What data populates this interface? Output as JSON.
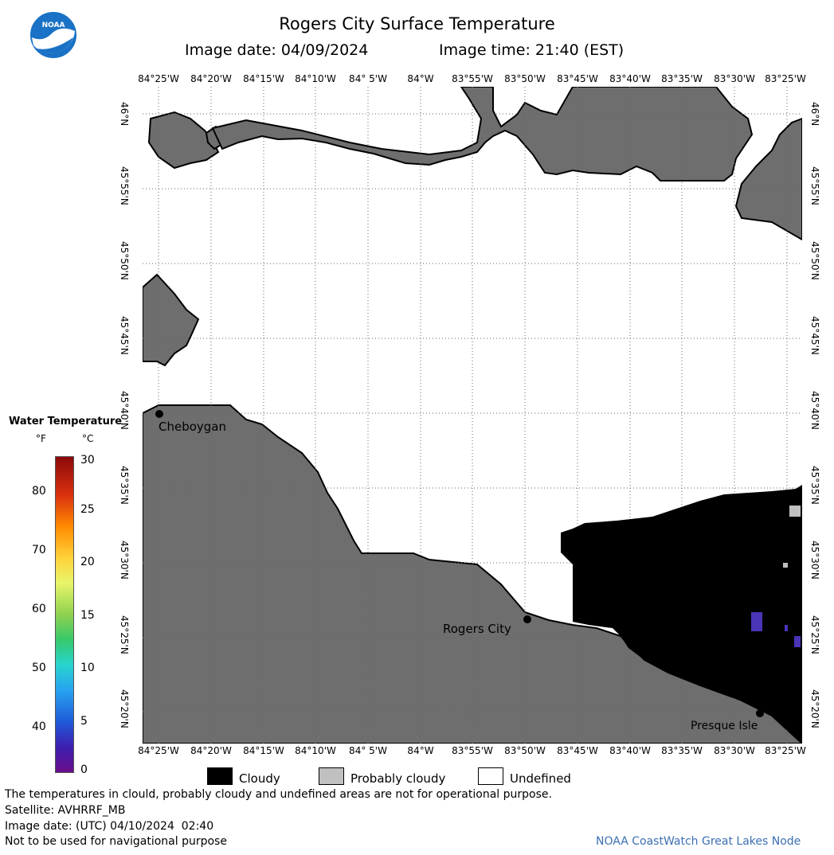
{
  "header": {
    "title": "Rogers City Surface Temperature",
    "image_date": "Image date: 04/09/2024",
    "image_time": "Image time: 21:40 (EST)",
    "logo_text": "NOAA"
  },
  "map": {
    "lon_labels": [
      "84°25'W",
      "84°20'W",
      "84°15'W",
      "84°10'W",
      "84° 5'W",
      "84°W",
      "83°55'W",
      "83°50'W",
      "83°45'W",
      "83°40'W",
      "83°35'W",
      "83°30'W",
      "83°25'W"
    ],
    "lat_labels": [
      "46°N",
      "45°55'N",
      "45°50'N",
      "45°45'N",
      "45°40'N",
      "45°35'N",
      "45°30'N",
      "45°25'N",
      "45°20'N"
    ],
    "cities": [
      {
        "name": "Cheboygan"
      },
      {
        "name": "Rogers City"
      },
      {
        "name": "Presque Isle"
      }
    ],
    "colors": {
      "land": "#6e6e6e",
      "cloudy": "#000000",
      "probably_cloudy": "#c0c0c0",
      "undefined": "#ffffff",
      "cold_water": "#4a34b8"
    }
  },
  "legend": {
    "title": "Water Temperature",
    "unit_f": "°F",
    "unit_c": "°C",
    "f_ticks": [
      "80",
      "70",
      "60",
      "50",
      "40"
    ],
    "c_ticks": [
      "30",
      "25",
      "20",
      "15",
      "10",
      "5",
      "0"
    ]
  },
  "key": {
    "cloudy": "Cloudy",
    "probably_cloudy": "Probably cloudy",
    "undefined": "Undefined"
  },
  "notes": {
    "disclaimer": "The temperatures in clould, probably cloudy and undefined areas are not for operational purpose.",
    "satellite": "Satellite: AVHRRF_MB",
    "utc_date": "Image date: (UTC) 04/10/2024  02:40",
    "nav_warning": "Not to be used for navigational purpose",
    "credit": "NOAA CoastWatch Great Lakes Node"
  }
}
